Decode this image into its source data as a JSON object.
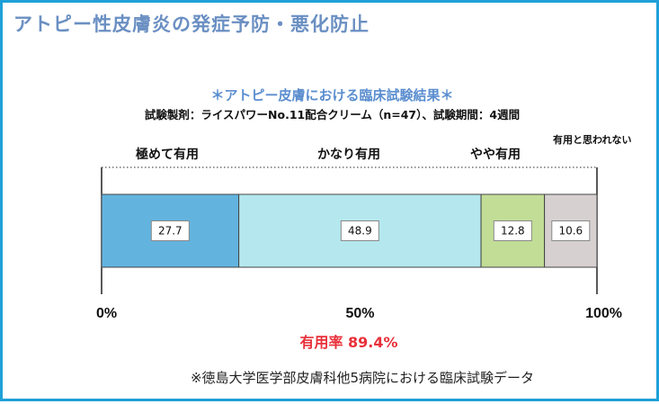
{
  "title": "アトピー性皮膚炎の発症予防・悪化防止",
  "subtitle": "＊アトピー皮膚における臨床試験結果＊",
  "study_line": "試験製剤：ライスパワーNo.11配合クリーム（n=47）、試験期間：4週間",
  "effective_rate": "有用率 89.4%",
  "footnote": "※徳島大学医学部皮膚科他5病院における臨床試験データ",
  "colors": {
    "border": "#1fa0d8",
    "title": "#6a8fc2",
    "subtitle": "#5b8ecf",
    "rate": "#e8303a"
  },
  "chart_data": {
    "type": "bar",
    "orientation": "horizontal-stacked-100",
    "categories": [
      "極めて有用",
      "かなり有用",
      "やや有用",
      "有用と思われない"
    ],
    "values": [
      27.7,
      48.9,
      12.8,
      10.6
    ],
    "value_labels": [
      "27.7",
      "48.9",
      "12.8",
      "10.6"
    ],
    "colors": [
      "#62b4df",
      "#b4e8ee",
      "#c2dd96",
      "#d6d0d0"
    ],
    "x_ticks": [
      "0%",
      "50%",
      "100%"
    ],
    "xlim": [
      0,
      100
    ],
    "grid": false
  }
}
